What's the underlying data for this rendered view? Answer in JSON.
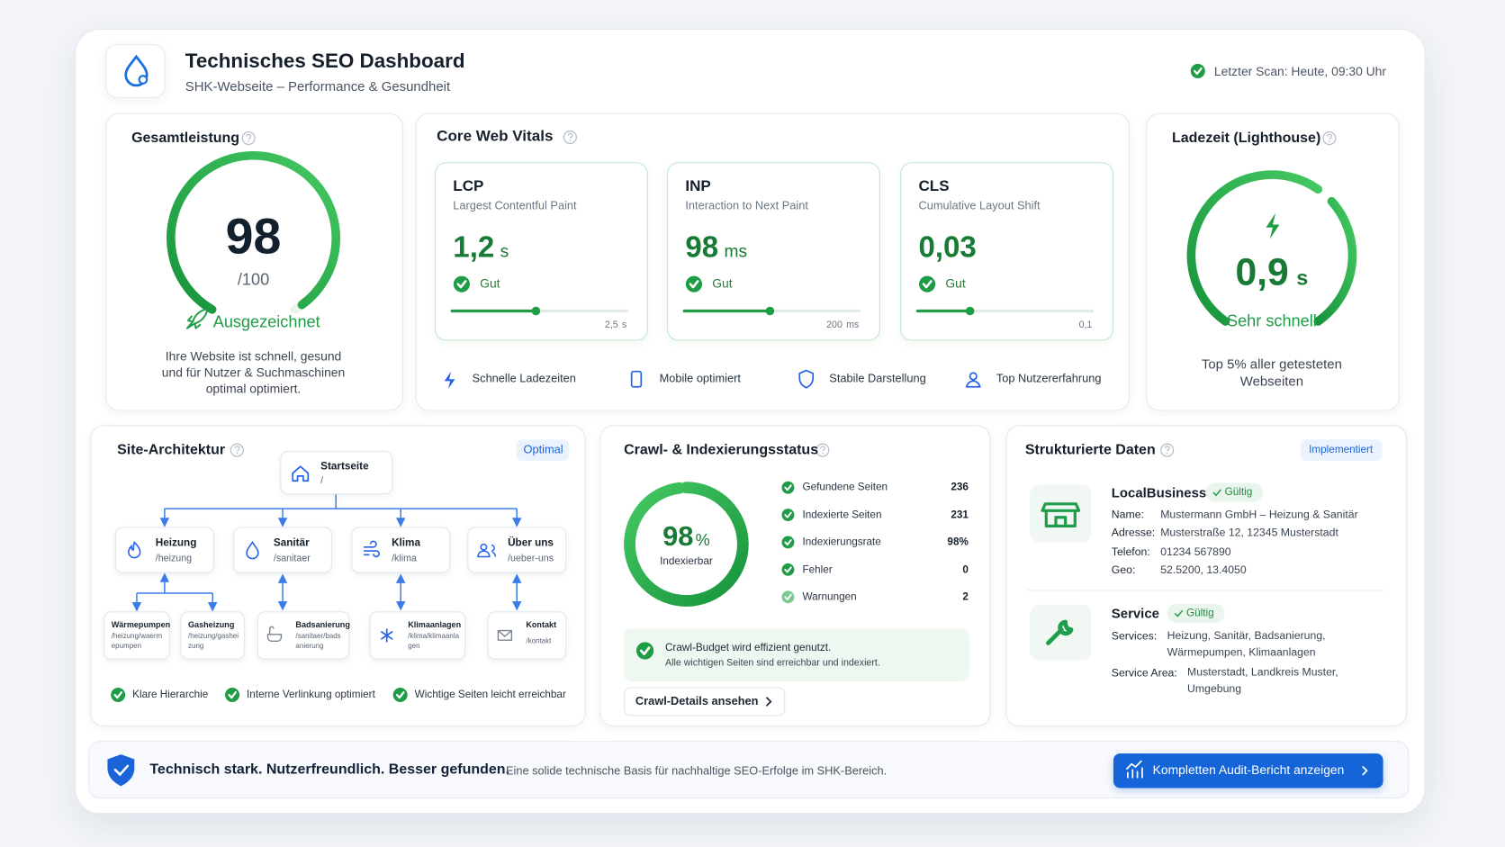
{
  "header": {
    "title": "Technisches SEO Dashboard",
    "subtitle": "SHK-Webseite – Performance & Gesundheit",
    "scan": "Letzter Scan: Heute, 09:30 Uhr"
  },
  "overall": {
    "title": "Gesamtleistung",
    "score": 98,
    "max": 100,
    "max_label": "/100",
    "rating": "Ausgezeichnet",
    "description": "Ihre Website ist schnell, gesund und für Nutzer & Suchmaschinen optimal optimiert."
  },
  "vitals": {
    "title": "Core Web Vitals",
    "metrics": [
      {
        "name": "LCP",
        "full": "Largest Contentful Paint",
        "value": 1.2,
        "value_label": "1,2",
        "unit": "s",
        "status": "Gut",
        "max": 2.5,
        "max_label": "2,5",
        "max_unit": "s"
      },
      {
        "name": "INP",
        "full": "Interaction to Next Paint",
        "value": 98,
        "unit": "ms",
        "status": "Gut",
        "max": 200,
        "max_unit": "ms"
      },
      {
        "name": "CLS",
        "full": "Cumulative Layout Shift",
        "value": 0.03,
        "value_label": "0,03",
        "status": "Gut",
        "max": 0.1,
        "max_label": "0,1"
      }
    ],
    "features": [
      "Schnelle Ladezeiten",
      "Mobile optimiert",
      "Stabile Darstellung",
      "Top Nutzererfahrung"
    ]
  },
  "load_time": {
    "title": "Ladezeit (Lighthouse)",
    "value": 0.9,
    "value_label": "0,9",
    "unit": "s",
    "rating": "Sehr schnell",
    "description": "Top 5% aller getesteten Webseiten"
  },
  "architecture": {
    "title": "Site-Architektur",
    "badge": "Optimal",
    "root": {
      "label": "Startseite",
      "path": "/"
    },
    "sections": [
      {
        "label": "Heizung",
        "path": "/heizung",
        "children": [
          {
            "label": "Wärmepumpen",
            "path": "/heizung/waermepumpen"
          },
          {
            "label": "Gasheizung",
            "path": "/heizung/gasheizung"
          }
        ]
      },
      {
        "label": "Sanitär",
        "path": "/sanitaer",
        "children": [
          {
            "label": "Badsanierung",
            "path": "/sanitaer/badsanierung"
          }
        ]
      },
      {
        "label": "Klima",
        "path": "/klima",
        "children": [
          {
            "label": "Klimaanlagen",
            "path": "/klima/klimaanlagen"
          }
        ]
      },
      {
        "label": "Über uns",
        "path": "/ueber-uns",
        "children": [
          {
            "label": "Kontakt",
            "path": "/kontakt"
          }
        ]
      }
    ],
    "checks": [
      "Klare Hierarchie",
      "Interne Verlinkung optimiert",
      "Wichtige Seiten leicht erreichbar"
    ]
  },
  "crawl": {
    "title": "Crawl- & Indexierungsstatus",
    "index_rate": 98,
    "index_unit": "%",
    "index_label": "Indexierbar",
    "stats": [
      {
        "label": "Gefundene Seiten",
        "value": 236
      },
      {
        "label": "Indexierte Seiten",
        "value": 231
      },
      {
        "label": "Indexierungsrate",
        "value": 98,
        "value_label": "98%"
      },
      {
        "label": "Fehler",
        "value": 0
      },
      {
        "label": "Warnungen",
        "value": 2
      }
    ],
    "notice_title": "Crawl-Budget wird effizient genutzt.",
    "notice_text": "Alle wichtigen Seiten sind erreichbar und indexiert.",
    "button": "Crawl-Details ansehen"
  },
  "structured": {
    "title": "Strukturierte Daten",
    "badge": "Implementiert",
    "items": [
      {
        "type": "LocalBusiness",
        "status": "Gültig",
        "fields": [
          {
            "key": "Name:",
            "value": "Mustermann GmbH – Heizung & Sanitär"
          },
          {
            "key": "Adresse:",
            "value": "Musterstraße 12, 12345 Musterstadt"
          },
          {
            "key": "Telefon:",
            "value": "01234 567890"
          },
          {
            "key": "Geo:",
            "value": "52.5200, 13.4050"
          }
        ]
      },
      {
        "type": "Service",
        "status": "Gültig",
        "fields": [
          {
            "key": "Services:",
            "value": "Heizung, Sanitär, Badsanierung, Wärmepumpen, Klimaanlagen"
          },
          {
            "key": "Service Area:",
            "value": "Musterstadt, Landkreis Muster, Umgebung"
          }
        ]
      }
    ]
  },
  "footer": {
    "headline": "Technisch stark. Nutzerfreundlich. Besser gefunden.",
    "text": "Eine solide technische Basis für nachhaltige SEO-Erfolge im SHK-Bereich.",
    "button": "Kompletten Audit-Bericht anzeigen"
  }
}
